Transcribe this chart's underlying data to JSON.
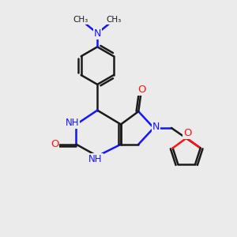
{
  "background_color": "#ebebeb",
  "bond_color": "#1a1a1a",
  "nitrogen_color": "#1414ff",
  "oxygen_color": "#ff1414",
  "line_width": 1.8,
  "figsize": [
    3.0,
    3.0
  ],
  "dpi": 100,
  "xlim": [
    0,
    10
  ],
  "ylim": [
    0,
    10
  ]
}
